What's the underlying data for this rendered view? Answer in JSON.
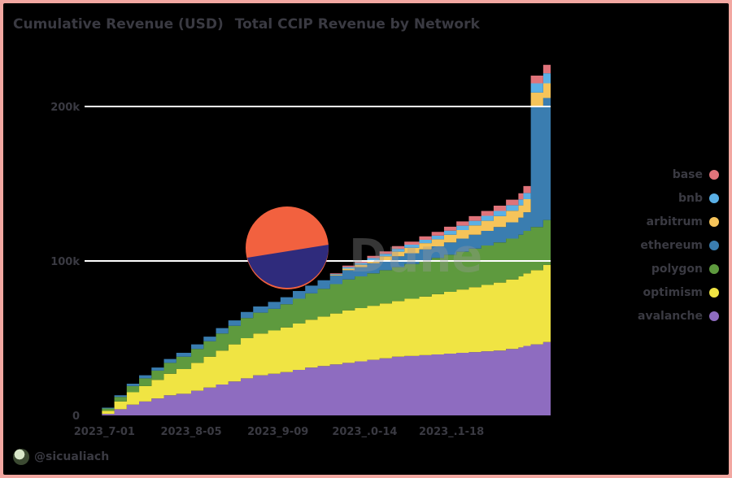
{
  "header": {
    "title": "Cumulative Revenue (USD)",
    "subtitle": "Total CCIP Revenue by Network"
  },
  "footer": {
    "handle": "@sicualiach"
  },
  "watermark": "Dune",
  "colors": {
    "background": "#000000",
    "frame": "#f2a7a1",
    "text": "#3a3a42",
    "grid": "#ffffff"
  },
  "chart_data": {
    "type": "area",
    "stacked": true,
    "x_ticks": [
      "2023-7-01",
      "2023-8-05",
      "2023-9-09",
      "2023-10-14",
      "2023-11-18"
    ],
    "x_tick_labels": [
      "2023_7-01",
      "2023_8-05",
      "2023_9-09",
      "2023_.0-14",
      "2023_.1-18"
    ],
    "y_ticks": [
      0,
      100000,
      200000
    ],
    "y_tick_labels": [
      "0",
      "100k",
      "200k"
    ],
    "ylim": [
      0,
      230000
    ],
    "x_range": [
      "2023-6-23",
      "2023-12-28"
    ],
    "grid": true,
    "legend_position": "right",
    "x": [
      "2023-6-23",
      "2023-6-30",
      "2023-7-05",
      "2023-7-10",
      "2023-7-15",
      "2023-7-20",
      "2023-7-25",
      "2023-7-30",
      "2023-8-05",
      "2023-8-10",
      "2023-8-15",
      "2023-8-20",
      "2023-8-25",
      "2023-8-30",
      "2023-9-05",
      "2023-9-10",
      "2023-9-15",
      "2023-9-20",
      "2023-9-25",
      "2023-9-30",
      "2023-10-05",
      "2023-10-10",
      "2023-10-15",
      "2023-10-20",
      "2023-10-25",
      "2023-10-30",
      "2023-11-05",
      "2023-11-10",
      "2023-11-15",
      "2023-11-20",
      "2023-11-25",
      "2023-11-30",
      "2023-12-05",
      "2023-12-10",
      "2023-12-15",
      "2023-12-17",
      "2023-12-20",
      "2023-12-25",
      "2023-12-28"
    ],
    "series": [
      {
        "name": "avalanche",
        "color": "#8e6cc0",
        "values": [
          0,
          1000,
          4000,
          7000,
          9000,
          11000,
          13000,
          14000,
          16000,
          18000,
          20000,
          22000,
          24000,
          26000,
          27000,
          28000,
          29500,
          31000,
          32000,
          33000,
          34000,
          35000,
          36000,
          37000,
          38000,
          38500,
          39000,
          39500,
          40000,
          40500,
          41000,
          41500,
          42000,
          43000,
          44000,
          45000,
          46000,
          47500,
          48000
        ]
      },
      {
        "name": "optimism",
        "color": "#f0e443",
        "values": [
          0,
          2000,
          5000,
          8000,
          10000,
          12000,
          14000,
          16000,
          18000,
          20000,
          22000,
          24000,
          26000,
          27000,
          28000,
          29000,
          30000,
          31000,
          32000,
          33000,
          34000,
          34500,
          35000,
          35500,
          36000,
          37000,
          38000,
          39000,
          40000,
          41000,
          42000,
          43000,
          44000,
          45000,
          46000,
          47000,
          48000,
          50000,
          51000
        ]
      },
      {
        "name": "polygon",
        "color": "#5e9a3e",
        "values": [
          0,
          1500,
          3000,
          4000,
          5000,
          6000,
          7000,
          8000,
          9000,
          10000,
          11000,
          12000,
          13000,
          13500,
          14000,
          15000,
          16000,
          17000,
          18000,
          19000,
          20000,
          20500,
          21000,
          21500,
          22000,
          22500,
          23000,
          23500,
          24000,
          24500,
          25000,
          25500,
          26000,
          26500,
          27000,
          27500,
          28000,
          29000,
          30000
        ]
      },
      {
        "name": "ethereum",
        "color": "#3a7db0",
        "values": [
          0,
          500,
          1000,
          1500,
          2000,
          2000,
          2500,
          2500,
          3000,
          3000,
          3500,
          3500,
          4000,
          4000,
          4500,
          4500,
          5000,
          5000,
          5500,
          5500,
          6000,
          6000,
          6500,
          6500,
          7000,
          7000,
          7500,
          7500,
          8000,
          8500,
          9000,
          9500,
          10000,
          10500,
          11000,
          12000,
          78000,
          79000,
          80000
        ]
      },
      {
        "name": "arbitrum",
        "color": "#f6c45a",
        "values": [
          0,
          0,
          0,
          0,
          0,
          0,
          0,
          0,
          0,
          0,
          0,
          0,
          0,
          0,
          0,
          0,
          0,
          0,
          0,
          500,
          1000,
          1500,
          2000,
          2500,
          3000,
          3500,
          4000,
          4500,
          5000,
          5500,
          6000,
          6500,
          7000,
          7500,
          8000,
          8500,
          9000,
          9500,
          10000
        ]
      },
      {
        "name": "bnb",
        "color": "#5ab0e6",
        "values": [
          0,
          0,
          0,
          0,
          0,
          0,
          0,
          0,
          0,
          0,
          0,
          0,
          0,
          0,
          0,
          0,
          0,
          0,
          0,
          500,
          1000,
          1200,
          1400,
          1600,
          1800,
          2000,
          2200,
          2400,
          2600,
          2800,
          3000,
          3200,
          3400,
          3600,
          3800,
          4000,
          6000,
          6500,
          7000
        ]
      },
      {
        "name": "base",
        "color": "#e0737a",
        "values": [
          0,
          0,
          0,
          0,
          0,
          0,
          0,
          0,
          0,
          0,
          0,
          0,
          0,
          0,
          0,
          0,
          0,
          0,
          0,
          500,
          1000,
          1200,
          1400,
          1600,
          1800,
          2000,
          2200,
          2400,
          2600,
          2800,
          3000,
          3200,
          3400,
          3600,
          4000,
          4500,
          5000,
          5500,
          6000
        ]
      }
    ]
  }
}
